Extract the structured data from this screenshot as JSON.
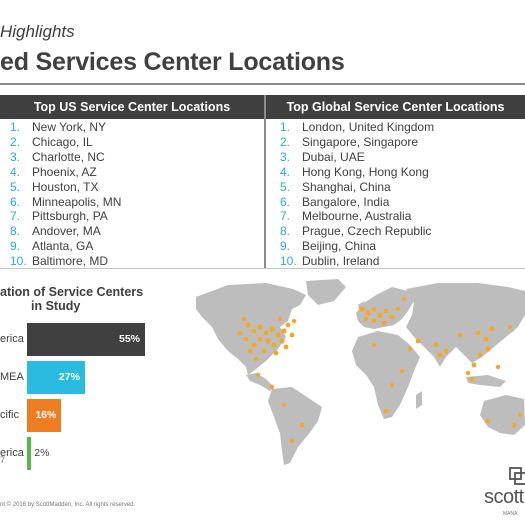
{
  "header": {
    "subtitle": "Highlights",
    "title": "ed Services Center Locations"
  },
  "us_table": {
    "heading": "Top US Service Center Locations",
    "items": [
      {
        "num": "1.",
        "name": "New York, NY"
      },
      {
        "num": "2.",
        "name": "Chicago, IL"
      },
      {
        "num": "3.",
        "name": "Charlotte, NC"
      },
      {
        "num": "4.",
        "name": "Phoenix, AZ"
      },
      {
        "num": "5.",
        "name": "Houston, TX"
      },
      {
        "num": "6.",
        "name": "Minneapolis, MN"
      },
      {
        "num": "7.",
        "name": "Pittsburgh, PA"
      },
      {
        "num": "8.",
        "name": "Andover, MA"
      },
      {
        "num": "9.",
        "name": "Atlanta, GA"
      },
      {
        "num": "10.",
        "name": "Baltimore, MD"
      }
    ]
  },
  "global_table": {
    "heading": "Top Global Service Center Locations",
    "items": [
      {
        "num": "1.",
        "name": "London, United Kingdom"
      },
      {
        "num": "2.",
        "name": "Singapore, Singapore"
      },
      {
        "num": "3.",
        "name": "Dubai, UAE"
      },
      {
        "num": "4.",
        "name": "Hong Kong, Hong Kong"
      },
      {
        "num": "5.",
        "name": "Shanghai, China"
      },
      {
        "num": "6.",
        "name": "Bangalore, India"
      },
      {
        "num": "7.",
        "name": "Melbourne, Australia"
      },
      {
        "num": "8.",
        "name": "Prague, Czech Republic"
      },
      {
        "num": "9.",
        "name": "Beijing, China"
      },
      {
        "num": "10.",
        "name": "Dublin, Ireland"
      }
    ]
  },
  "chart_data": {
    "type": "bar",
    "title_line1": "ation of Service Centers",
    "title_line2": "in Study",
    "categories": [
      "erica",
      "MEA",
      "cific",
      "erica"
    ],
    "values": [
      55,
      27,
      16,
      2
    ],
    "value_labels": [
      "55%",
      "27%",
      "16%",
      "2%"
    ],
    "colors": [
      "#404040",
      "#29bce0",
      "#ef7d23",
      "#57b947"
    ],
    "orientation": "horizontal",
    "xlim": [
      0,
      65
    ]
  },
  "footnote": "7",
  "copyright": "nt © 2016 by ScottMadden, Inc. All rights reserved.",
  "logo": {
    "word": "scott",
    "sub": "MANA"
  },
  "colors": {
    "accent": "#29abe2",
    "header_bg": "#3f3f3f",
    "map_land": "#bdbdbd",
    "map_dot": "#f5a623"
  }
}
